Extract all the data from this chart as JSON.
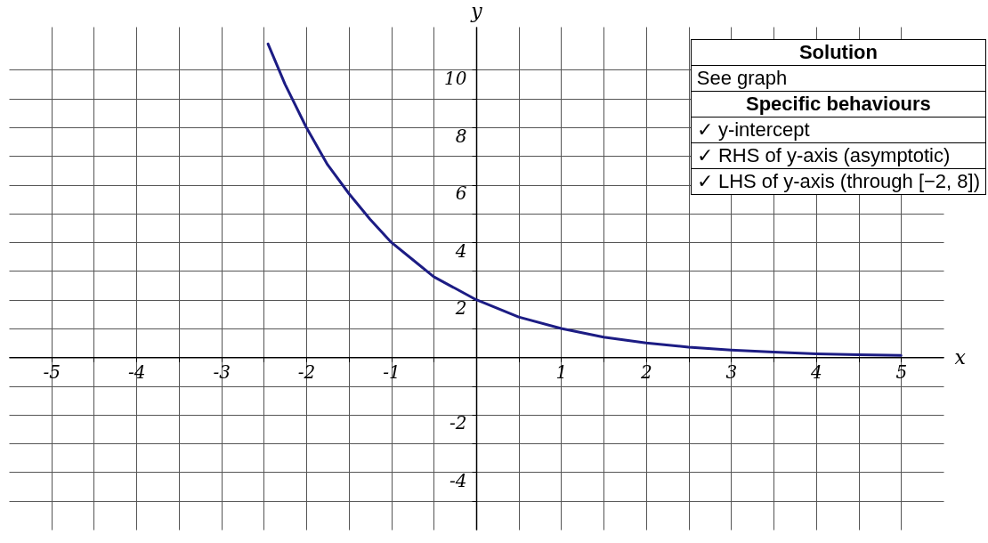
{
  "chart_data": {
    "type": "line",
    "xlabel": "x",
    "ylabel": "y",
    "xlim": [
      -5.5,
      5.5
    ],
    "ylim": [
      -6,
      11.5
    ],
    "xticks": [
      -5,
      {
        "value": -4.5,
        "label": null
      },
      -4,
      {
        "value": -3.5,
        "label": null
      },
      -3,
      {
        "value": -2.5,
        "label": null
      },
      -2,
      {
        "value": -1.5,
        "label": null
      },
      -1,
      {
        "value": -0.5,
        "label": null
      },
      {
        "value": 0,
        "label": null
      },
      {
        "value": 0.5,
        "label": null
      },
      1,
      {
        "value": 1.5,
        "label": null
      },
      2,
      {
        "value": 2.5,
        "label": null
      },
      3,
      {
        "value": 3.5,
        "label": null
      },
      4,
      {
        "value": 4.5,
        "label": null
      },
      5
    ],
    "yticks": [
      {
        "value": -5,
        "label": null
      },
      -4,
      {
        "value": -3,
        "label": null
      },
      -2,
      {
        "value": -1,
        "label": null
      },
      {
        "value": 0,
        "label": null
      },
      {
        "value": 1,
        "label": null
      },
      2,
      {
        "value": 3,
        "label": null
      },
      4,
      {
        "value": 5,
        "label": null
      },
      6,
      {
        "value": 7,
        "label": null
      },
      8,
      {
        "value": 9,
        "label": null
      },
      10
    ],
    "grid": true,
    "legend": false,
    "marker": "none",
    "line_style": "solid",
    "series": [
      {
        "color": "#1c1c84",
        "x": [
          -2.45,
          -2.25,
          -2,
          -1.75,
          -1.5,
          -1.25,
          -1,
          -0.75,
          -0.5,
          -0.25,
          0,
          0.5,
          1,
          1.5,
          2,
          2.5,
          3,
          3.5,
          4,
          4.5,
          5
        ],
        "values": [
          10.9,
          9.5,
          8,
          6.7,
          5.7,
          4.8,
          4,
          3.4,
          2.8,
          2.4,
          2,
          1.4,
          1,
          0.7,
          0.5,
          0.35,
          0.25,
          0.18,
          0.12,
          0.09,
          0.06
        ]
      }
    ],
    "annotations": [
      "Solution",
      "See graph",
      "Specific behaviours",
      "✓ y-intercept",
      "✓ RHS of y-axis (asymptotic)",
      "✓ LHS of y-axis (through [−2, 8])"
    ]
  }
}
